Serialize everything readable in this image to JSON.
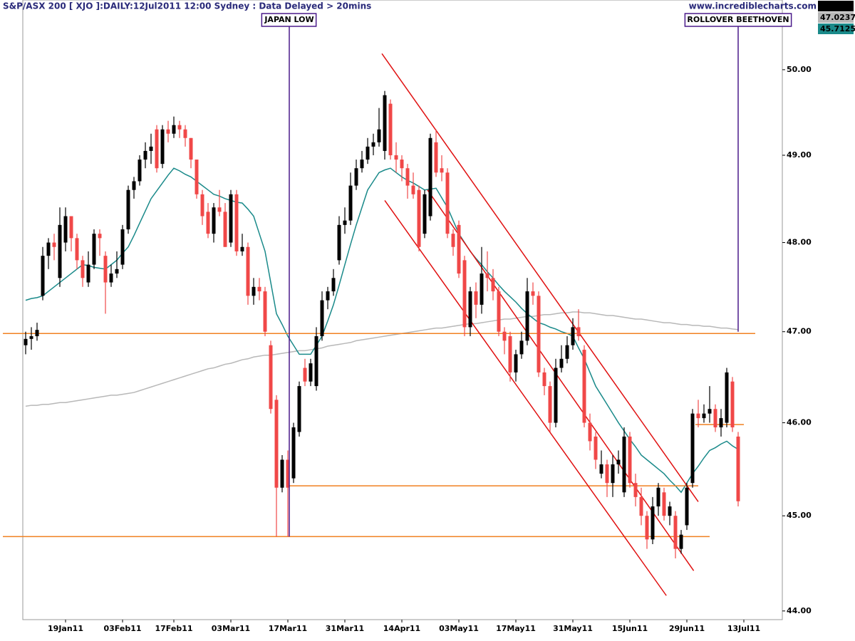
{
  "chart_data": {
    "type": "candlestick",
    "title": "S&P/ASX 200 [ XJO ]:DAILY:12Jul2011 12:00 Sydney : Data Delayed > 20mins",
    "watermark": "www.incrediblecharts.com",
    "up_color": "#000000",
    "down_color": "#f04848",
    "categories": [
      null,
      null,
      null,
      null,
      null,
      null,
      null,
      "19Jan11",
      null,
      null,
      null,
      null,
      null,
      null,
      null,
      null,
      null,
      "03Feb11",
      null,
      null,
      null,
      null,
      null,
      null,
      null,
      null,
      "17Feb11",
      null,
      null,
      null,
      null,
      null,
      null,
      null,
      null,
      null,
      "03Mar11",
      null,
      null,
      null,
      null,
      null,
      null,
      null,
      null,
      null,
      "17Mar11",
      null,
      null,
      null,
      null,
      null,
      null,
      null,
      null,
      null,
      "31Mar11",
      null,
      null,
      null,
      null,
      null,
      null,
      null,
      null,
      null,
      "14Apr11",
      null,
      null,
      null,
      null,
      null,
      null,
      null,
      null,
      null,
      "03May11",
      null,
      null,
      null,
      null,
      null,
      null,
      null,
      null,
      null,
      "17May11",
      null,
      null,
      null,
      null,
      null,
      null,
      null,
      null,
      null,
      "31May11",
      null,
      null,
      null,
      null,
      null,
      null,
      null,
      null,
      null,
      "15Jun11",
      null,
      null,
      null,
      null,
      null,
      null,
      null,
      null,
      null,
      "29Jun11",
      null,
      null,
      null,
      null,
      null,
      null,
      null,
      null,
      null,
      "13Jul11"
    ],
    "open": [
      46.85,
      46.92,
      46.95,
      47.4,
      47.85,
      48.0,
      47.6,
      48.0,
      48.3,
      48.05,
      47.8,
      47.55,
      47.75,
      48.1,
      47.85,
      47.55,
      47.65,
      47.75,
      48.15,
      48.6,
      48.7,
      48.95,
      49.05,
      49.3,
      48.9,
      49.3,
      49.25,
      49.35,
      49.3,
      49.2,
      48.95,
      48.55,
      48.35,
      48.1,
      48.4,
      48.35,
      48.0,
      48.55,
      47.9,
      47.95,
      47.4,
      47.5,
      47.45,
      46.85,
      46.25,
      45.3,
      45.6,
      45.4,
      45.9,
      46.6,
      46.45,
      46.4,
      46.95,
      47.35,
      47.45,
      47.8,
      48.2,
      48.25,
      48.65,
      48.85,
      48.95,
      49.1,
      49.15,
      49.05,
      49.6,
      49.0,
      48.95,
      48.85,
      48.65,
      48.6,
      48.1,
      48.3,
      49.15,
      48.85,
      48.8,
      48.1,
      48.2,
      47.8,
      47.05,
      47.45,
      47.3,
      47.65,
      47.6,
      47.45,
      47.0,
      46.95,
      46.55,
      46.75,
      46.9,
      47.45,
      47.4,
      46.55,
      46.4,
      46.0,
      46.6,
      46.7,
      46.85,
      47.05,
      46.8,
      46.0,
      45.85,
      45.45,
      45.55,
      45.35,
      45.55,
      45.25,
      45.85,
      45.35,
      45.2,
      45.0,
      44.75,
      45.1,
      45.25,
      45.0,
      45.0,
      44.65,
      44.9,
      45.35,
      46.1,
      46.05,
      46.1,
      46.15,
      45.95,
      46.0,
      46.45,
      45.85,
      null
    ],
    "high": [
      47.0,
      47.05,
      47.1,
      47.95,
      48.05,
      48.1,
      48.4,
      48.4,
      48.3,
      48.1,
      47.85,
      47.9,
      48.15,
      48.15,
      47.9,
      47.75,
      47.9,
      48.2,
      48.65,
      48.75,
      49.0,
      49.15,
      49.25,
      49.35,
      49.35,
      49.4,
      49.45,
      49.4,
      49.35,
      49.2,
      48.95,
      48.6,
      48.45,
      48.45,
      48.6,
      48.45,
      48.6,
      48.6,
      48.1,
      48.0,
      47.6,
      47.6,
      47.5,
      46.9,
      46.3,
      45.65,
      45.7,
      46.0,
      46.45,
      46.7,
      46.7,
      47.05,
      47.45,
      47.5,
      47.7,
      48.3,
      48.4,
      48.8,
      48.95,
      49.05,
      49.2,
      49.25,
      49.55,
      49.75,
      49.65,
      49.15,
      49.0,
      48.9,
      48.8,
      48.65,
      48.6,
      49.25,
      49.3,
      49.0,
      48.85,
      48.15,
      48.25,
      47.85,
      47.5,
      47.55,
      47.95,
      47.9,
      47.7,
      47.5,
      47.05,
      47.0,
      46.8,
      47.0,
      47.6,
      47.55,
      47.45,
      46.6,
      46.45,
      46.7,
      46.85,
      46.95,
      47.15,
      47.25,
      46.85,
      46.1,
      45.9,
      45.7,
      45.6,
      45.65,
      45.7,
      45.95,
      45.9,
      45.45,
      45.3,
      45.05,
      45.2,
      45.35,
      45.3,
      45.15,
      45.05,
      44.85,
      45.35,
      46.15,
      46.25,
      46.2,
      46.4,
      46.2,
      46.15,
      46.6,
      46.5,
      45.9,
      null
    ],
    "low": [
      46.75,
      46.8,
      46.9,
      47.35,
      47.7,
      47.8,
      47.5,
      47.9,
      47.9,
      47.7,
      47.5,
      47.5,
      47.7,
      47.85,
      47.2,
      47.5,
      47.6,
      47.7,
      48.1,
      48.5,
      48.65,
      48.85,
      48.9,
      48.8,
      48.85,
      49.15,
      49.2,
      49.2,
      49.1,
      48.85,
      48.5,
      48.2,
      48.05,
      48.0,
      48.3,
      47.95,
      47.95,
      47.85,
      47.85,
      47.3,
      47.3,
      47.35,
      46.95,
      46.1,
      44.78,
      45.25,
      44.78,
      45.35,
      45.85,
      46.4,
      46.4,
      46.35,
      46.9,
      47.25,
      47.4,
      47.75,
      48.1,
      48.2,
      48.6,
      48.8,
      48.9,
      49.0,
      49.1,
      48.95,
      48.95,
      48.8,
      48.7,
      48.5,
      48.5,
      47.9,
      48.05,
      48.25,
      48.75,
      48.7,
      48.05,
      47.85,
      47.6,
      46.95,
      46.95,
      47.15,
      47.2,
      47.45,
      47.35,
      46.95,
      46.75,
      46.45,
      46.45,
      46.7,
      46.85,
      47.3,
      46.5,
      46.3,
      45.9,
      45.95,
      46.55,
      46.65,
      46.8,
      46.9,
      45.95,
      45.7,
      45.5,
      45.4,
      45.2,
      45.2,
      45.45,
      45.2,
      45.3,
      45.1,
      44.9,
      44.65,
      44.7,
      45.0,
      44.95,
      44.9,
      44.55,
      44.6,
      44.85,
      45.3,
      45.95,
      46.0,
      46.0,
      45.9,
      45.85,
      45.95,
      45.9,
      45.1,
      null
    ],
    "close": [
      46.92,
      46.95,
      47.02,
      47.85,
      48.0,
      47.95,
      48.2,
      48.3,
      48.05,
      47.8,
      47.6,
      47.75,
      48.1,
      48.05,
      47.55,
      47.65,
      47.7,
      48.15,
      48.6,
      48.7,
      48.95,
      49.05,
      49.1,
      48.85,
      49.3,
      49.25,
      49.35,
      49.3,
      49.2,
      48.95,
      48.55,
      48.3,
      48.1,
      48.4,
      48.35,
      47.95,
      48.55,
      47.9,
      47.95,
      47.4,
      47.5,
      47.45,
      47.0,
      46.15,
      45.3,
      45.6,
      45.3,
      45.95,
      46.4,
      46.45,
      46.65,
      46.95,
      47.35,
      47.45,
      47.6,
      48.2,
      48.25,
      48.65,
      48.85,
      48.95,
      49.1,
      49.15,
      49.3,
      49.7,
      49.0,
      48.95,
      48.85,
      48.65,
      48.55,
      47.95,
      48.55,
      49.2,
      48.8,
      48.8,
      48.1,
      47.95,
      47.65,
      47.05,
      47.45,
      47.3,
      47.65,
      47.6,
      47.45,
      47.0,
      46.9,
      46.55,
      46.75,
      46.9,
      47.45,
      47.4,
      46.55,
      46.4,
      46.0,
      46.6,
      46.7,
      46.85,
      47.05,
      46.95,
      46.0,
      45.8,
      45.6,
      45.55,
      45.35,
      45.55,
      45.6,
      45.85,
      45.35,
      45.2,
      45.0,
      44.75,
      45.1,
      45.3,
      45.0,
      45.1,
      44.65,
      44.8,
      45.3,
      46.1,
      46.05,
      46.1,
      46.15,
      45.95,
      46.05,
      46.55,
      45.95,
      45.155,
      null
    ],
    "series": [
      {
        "color": "#b8b8b8",
        "values": [
          46.18,
          46.19,
          46.19,
          46.2,
          46.2,
          46.21,
          46.22,
          46.22,
          46.23,
          46.24,
          46.25,
          46.26,
          46.27,
          46.28,
          46.29,
          46.3,
          46.3,
          46.31,
          46.32,
          46.33,
          46.35,
          46.37,
          46.39,
          46.41,
          46.43,
          46.45,
          46.47,
          46.49,
          46.51,
          46.53,
          46.55,
          46.57,
          46.59,
          46.6,
          46.62,
          46.64,
          46.65,
          46.67,
          46.69,
          46.7,
          46.72,
          46.73,
          46.74,
          46.74,
          46.75,
          46.76,
          46.77,
          46.78,
          46.79,
          46.79,
          46.8,
          46.81,
          46.82,
          46.84,
          46.85,
          46.86,
          46.87,
          46.88,
          46.9,
          46.91,
          46.92,
          46.93,
          46.94,
          46.95,
          46.96,
          46.97,
          46.98,
          46.99,
          47.0,
          47.01,
          47.02,
          47.03,
          47.04,
          47.04,
          47.05,
          47.06,
          47.07,
          47.08,
          47.09,
          47.09,
          47.1,
          47.11,
          47.12,
          47.13,
          47.14,
          47.14,
          47.15,
          47.16,
          47.17,
          47.17,
          47.18,
          47.19,
          47.19,
          47.2,
          47.21,
          47.21,
          47.22,
          47.22,
          47.21,
          47.21,
          47.2,
          47.19,
          47.18,
          47.18,
          47.17,
          47.16,
          47.15,
          47.14,
          47.14,
          47.13,
          47.12,
          47.11,
          47.1,
          47.1,
          47.09,
          47.08,
          47.08,
          47.07,
          47.07,
          47.06,
          47.06,
          47.05,
          47.04,
          47.04,
          47.03,
          47.0237,
          null
        ]
      },
      {
        "color": "#1a8a8a",
        "values": [
          47.35,
          47.37,
          47.38,
          47.4,
          47.45,
          47.5,
          47.55,
          47.6,
          47.65,
          47.7,
          47.75,
          47.74,
          47.72,
          47.71,
          47.7,
          47.75,
          47.8,
          47.88,
          47.95,
          48.08,
          48.22,
          48.36,
          48.5,
          48.59,
          48.68,
          48.77,
          48.85,
          48.82,
          48.78,
          48.75,
          48.7,
          48.65,
          48.6,
          48.55,
          48.53,
          48.5,
          48.48,
          48.46,
          48.45,
          48.38,
          48.3,
          48.1,
          47.9,
          47.55,
          47.2,
          47.08,
          46.95,
          46.85,
          46.75,
          46.75,
          46.75,
          46.85,
          46.95,
          47.12,
          47.3,
          47.52,
          47.75,
          47.98,
          48.2,
          48.4,
          48.6,
          48.7,
          48.8,
          48.83,
          48.85,
          48.8,
          48.75,
          48.71,
          48.68,
          48.64,
          48.6,
          48.61,
          48.62,
          48.51,
          48.4,
          48.25,
          48.1,
          48.0,
          47.9,
          47.82,
          47.75,
          47.67,
          47.6,
          47.52,
          47.45,
          47.39,
          47.33,
          47.26,
          47.2,
          47.15,
          47.1,
          47.08,
          47.05,
          47.03,
          47.0,
          46.98,
          46.95,
          46.82,
          46.7,
          46.55,
          46.4,
          46.3,
          46.2,
          46.1,
          46.0,
          45.91,
          45.82,
          45.74,
          45.65,
          45.6,
          45.55,
          45.5,
          45.45,
          45.38,
          45.32,
          45.25,
          45.35,
          45.45,
          45.53,
          45.62,
          45.7,
          45.73,
          45.77,
          45.8,
          45.75,
          45.7125,
          null
        ]
      }
    ],
    "hlines": [
      {
        "value": 46.98,
        "from": -4,
        "to": 128,
        "color": "#f08020"
      },
      {
        "value": 45.32,
        "from": 46,
        "to": 118,
        "color": "#f08020"
      },
      {
        "value": 44.78,
        "from": -4,
        "to": 120,
        "color": "#f08020"
      },
      {
        "value": 45.98,
        "from": 117.5,
        "to": 126,
        "color": "#f08020"
      }
    ],
    "trendlines": [
      {
        "x": [
          62.5,
          118
        ],
        "y": [
          50.19,
          45.15
        ],
        "color": "#e01010"
      },
      {
        "x": [
          63,
          112.4
        ],
        "y": [
          48.48,
          44.16
        ],
        "color": "#e01010"
      },
      {
        "x": [
          70.5,
          117.2
        ],
        "y": [
          48.6,
          44.42
        ],
        "color": "#e01010"
      }
    ],
    "annotations": [
      {
        "text": "JAPAN LOW",
        "x": 46.25,
        "y": 44.78,
        "color": "#4a1a8a"
      },
      {
        "text": "ROLLOVER BEETHOVEN",
        "x": 125,
        "y": 47.0,
        "color": "#4a1a8a"
      }
    ],
    "ylog": true,
    "ylim": [
      43.91,
      50.83
    ],
    "yticks": [
      {
        "value": 44,
        "label": "44.00"
      },
      {
        "value": 45,
        "label": "45.00"
      },
      {
        "value": 46,
        "label": "46.00"
      },
      {
        "value": 47,
        "label": "47.00"
      },
      {
        "value": 48,
        "label": "48.00"
      },
      {
        "value": 49,
        "label": "49.00"
      },
      {
        "value": 50,
        "label": "50.00"
      }
    ]
  }
}
